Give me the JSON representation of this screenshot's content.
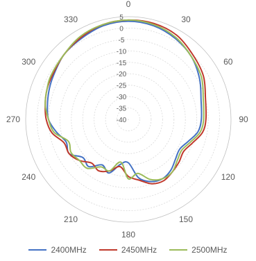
{
  "chart_data": {
    "type": "polar-line",
    "title": "",
    "angle_ticks": [
      0,
      30,
      60,
      90,
      120,
      150,
      180,
      210,
      240,
      270,
      300,
      330
    ],
    "radial_ticks": [
      5,
      0,
      -5,
      -10,
      -15,
      -20,
      -25,
      -30,
      -35,
      -40
    ],
    "rlim": [
      -40,
      5
    ],
    "grid": true,
    "legend_position": "bottom",
    "series": [
      {
        "name": "2400MHz",
        "color": "#4472C4",
        "points": [
          [
            0,
            3
          ],
          [
            15,
            2.5
          ],
          [
            30,
            1
          ],
          [
            45,
            -1
          ],
          [
            60,
            -4
          ],
          [
            75,
            -7
          ],
          [
            90,
            -8
          ],
          [
            100,
            -9
          ],
          [
            110,
            -12
          ],
          [
            120,
            -14
          ],
          [
            130,
            -13
          ],
          [
            140,
            -11
          ],
          [
            150,
            -10
          ],
          [
            160,
            -11
          ],
          [
            170,
            -14
          ],
          [
            180,
            -21
          ],
          [
            190,
            -20
          ],
          [
            200,
            -15
          ],
          [
            210,
            -17
          ],
          [
            220,
            -13
          ],
          [
            230,
            -14
          ],
          [
            240,
            -10
          ],
          [
            250,
            -11
          ],
          [
            260,
            -8
          ],
          [
            270,
            -5
          ],
          [
            280,
            -4
          ],
          [
            290,
            -3
          ],
          [
            300,
            -2
          ],
          [
            315,
            0
          ],
          [
            330,
            1
          ],
          [
            345,
            2.5
          ]
        ]
      },
      {
        "name": "2450MHz",
        "color": "#C0392B",
        "points": [
          [
            0,
            3.5
          ],
          [
            15,
            3.5
          ],
          [
            30,
            2.5
          ],
          [
            45,
            0
          ],
          [
            60,
            -2
          ],
          [
            75,
            -5
          ],
          [
            90,
            -6
          ],
          [
            100,
            -7
          ],
          [
            110,
            -10
          ],
          [
            120,
            -12
          ],
          [
            130,
            -11
          ],
          [
            140,
            -10
          ],
          [
            150,
            -9
          ],
          [
            160,
            -10
          ],
          [
            170,
            -13
          ],
          [
            180,
            -15
          ],
          [
            190,
            -19
          ],
          [
            200,
            -16
          ],
          [
            210,
            -14
          ],
          [
            220,
            -15
          ],
          [
            230,
            -12
          ],
          [
            240,
            -10
          ],
          [
            250,
            -10
          ],
          [
            260,
            -6
          ],
          [
            270,
            -4
          ],
          [
            280,
            -3
          ],
          [
            290,
            -2
          ],
          [
            300,
            -1.5
          ],
          [
            315,
            0
          ],
          [
            330,
            1.5
          ],
          [
            345,
            3
          ]
        ]
      },
      {
        "name": "2500MHz",
        "color": "#9BBB59",
        "points": [
          [
            0,
            3.5
          ],
          [
            15,
            3
          ],
          [
            30,
            1.5
          ],
          [
            45,
            -1
          ],
          [
            60,
            -3
          ],
          [
            75,
            -6
          ],
          [
            90,
            -7
          ],
          [
            100,
            -8
          ],
          [
            110,
            -11
          ],
          [
            120,
            -13
          ],
          [
            130,
            -12
          ],
          [
            140,
            -10
          ],
          [
            150,
            -10
          ],
          [
            160,
            -12
          ],
          [
            170,
            -16
          ],
          [
            180,
            -14
          ],
          [
            190,
            -21
          ],
          [
            200,
            -16
          ],
          [
            210,
            -16
          ],
          [
            220,
            -12
          ],
          [
            230,
            -12
          ],
          [
            240,
            -11
          ],
          [
            250,
            -12
          ],
          [
            260,
            -7
          ],
          [
            270,
            -5
          ],
          [
            280,
            -3
          ],
          [
            290,
            -2
          ],
          [
            300,
            -1
          ],
          [
            315,
            0
          ],
          [
            330,
            2
          ],
          [
            345,
            3
          ]
        ]
      }
    ]
  }
}
